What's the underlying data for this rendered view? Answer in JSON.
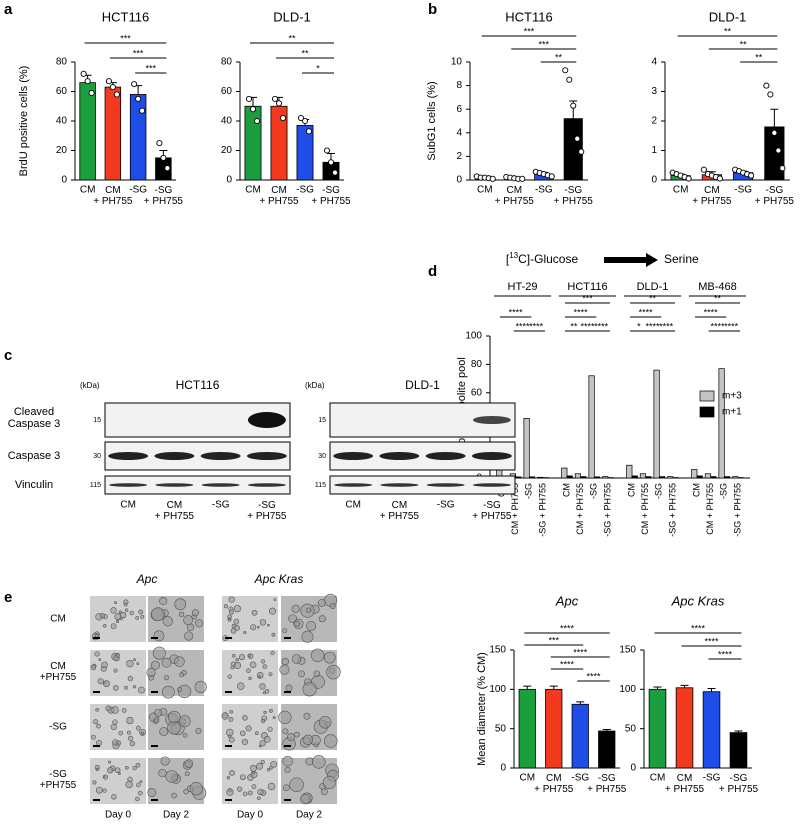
{
  "panels": [
    "a",
    "b",
    "c",
    "d",
    "e"
  ],
  "chart_data": [
    {
      "type": "bar",
      "title": "HCT116",
      "ylabel": "BrdU positive cells (%)",
      "categories": [
        "CM",
        "CM\n+ PH755",
        "-SG",
        "-SG\n+ PH755"
      ],
      "values": [
        66,
        63,
        58,
        15
      ],
      "errors": [
        5,
        3,
        6,
        5
      ],
      "points": [
        [
          72,
          67,
          59
        ],
        [
          67,
          63,
          58
        ],
        [
          65,
          55,
          47
        ],
        [
          25,
          15,
          8
        ]
      ],
      "colors": [
        "#1b9e3e",
        "#f23a1f",
        "#1f4de8",
        "#000000"
      ],
      "ylim": [
        0,
        80
      ],
      "yticks": [
        0,
        20,
        40,
        60,
        80
      ],
      "significance": [
        {
          "label": "***",
          "between": [
            0,
            3
          ]
        },
        {
          "label": "***",
          "between": [
            1,
            3
          ]
        },
        {
          "label": "***",
          "between": [
            2,
            3
          ]
        }
      ]
    },
    {
      "type": "bar",
      "title": "DLD-1",
      "categories": [
        "CM",
        "CM\n+ PH755",
        "-SG",
        "-SG\n+ PH755"
      ],
      "values": [
        50,
        50,
        37,
        12
      ],
      "errors": [
        6,
        6,
        4,
        6
      ],
      "points": [
        [
          55,
          48,
          40
        ],
        [
          55,
          52,
          42
        ],
        [
          42,
          40,
          33
        ],
        [
          20,
          12,
          5
        ]
      ],
      "colors": [
        "#1b9e3e",
        "#f23a1f",
        "#1f4de8",
        "#000000"
      ],
      "ylim": [
        0,
        80
      ],
      "yticks": [
        0,
        20,
        40,
        60,
        80
      ],
      "significance": [
        {
          "label": "**",
          "between": [
            0,
            3
          ]
        },
        {
          "label": "**",
          "between": [
            1,
            3
          ]
        },
        {
          "label": "*",
          "between": [
            2,
            3
          ]
        }
      ]
    },
    {
      "type": "bar",
      "title": "HCT116",
      "ylabel": "SubG1 cells (%)",
      "categories": [
        "CM",
        "CM\n+ PH755",
        "-SG",
        "-SG\n+ PH755"
      ],
      "values": [
        0.2,
        0.15,
        0.5,
        5.2
      ],
      "errors": [
        0.05,
        0.05,
        0.15,
        1.5
      ],
      "points": [
        [
          0.3,
          0.2,
          0.2,
          0.15,
          0.1
        ],
        [
          0.25,
          0.2,
          0.15,
          0.1,
          0.1
        ],
        [
          0.7,
          0.6,
          0.5,
          0.4,
          0.3
        ],
        [
          9.3,
          8.5,
          6.3,
          3.5,
          2.4
        ]
      ],
      "colors": [
        "#1b9e3e",
        "#f23a1f",
        "#1f4de8",
        "#000000"
      ],
      "ylim": [
        0,
        10
      ],
      "yticks": [
        0,
        2,
        4,
        6,
        8,
        10
      ],
      "significance": [
        {
          "label": "***",
          "between": [
            0,
            3
          ]
        },
        {
          "label": "***",
          "between": [
            1,
            3
          ]
        },
        {
          "label": "**",
          "between": [
            2,
            3
          ]
        }
      ]
    },
    {
      "type": "bar",
      "title": "DLD-1",
      "categories": [
        "CM",
        "CM\n+ PH755",
        "-SG",
        "-SG\n+ PH755"
      ],
      "values": [
        0.15,
        0.18,
        0.25,
        1.8
      ],
      "errors": [
        0.05,
        0.1,
        0.05,
        0.6
      ],
      "points": [
        [
          0.25,
          0.2,
          0.15,
          0.1,
          0.05
        ],
        [
          0.35,
          0.2,
          0.15,
          0.1,
          0.05
        ],
        [
          0.35,
          0.3,
          0.25,
          0.2,
          0.15
        ],
        [
          3.2,
          2.9,
          1.6,
          1.0,
          0.4
        ]
      ],
      "colors": [
        "#1b9e3e",
        "#f23a1f",
        "#1f4de8",
        "#000000"
      ],
      "ylim": [
        0,
        4
      ],
      "yticks": [
        0,
        1,
        2,
        3,
        4
      ],
      "significance": [
        {
          "label": "**",
          "between": [
            0,
            3
          ]
        },
        {
          "label": "**",
          "between": [
            1,
            3
          ]
        },
        {
          "label": "**",
          "between": [
            2,
            3
          ]
        }
      ]
    },
    {
      "type": "grouped_bar",
      "title": {
        "pre": "[",
        "sup": "13",
        "post": "C]-Glucose"
      },
      "target": "Serine",
      "ylabel": "% of metabolite pool",
      "groups": [
        "HT-29",
        "HCT116",
        "DLD-1",
        "MB-468"
      ],
      "categories": [
        "CM",
        "CM + PH755",
        "-SG",
        "-SG + PH755",
        "CM",
        "CM + PH755",
        "-SG",
        "-SG + PH755",
        "CM",
        "CM + PH755",
        "-SG",
        "-SG + PH755",
        "CM",
        "CM + PH755",
        "-SG",
        "-SG + PH755"
      ],
      "series": [
        {
          "name": "m+3",
          "color": "#c4c4c4",
          "values": [
            6,
            3,
            42,
            0.5,
            7,
            3,
            72,
            1,
            9,
            3,
            76,
            1,
            6,
            3,
            77,
            1
          ]
        },
        {
          "name": "m+1",
          "color": "#000000",
          "values": [
            1.5,
            0.8,
            0.8,
            0.3,
            1.5,
            1,
            0.8,
            0.3,
            1.5,
            1,
            1,
            0.3,
            1.5,
            1,
            1,
            0.3
          ]
        }
      ],
      "ylim": [
        0,
        100
      ],
      "yticks": [
        0,
        20,
        40,
        60,
        80,
        100
      ],
      "legend": "right",
      "significance": [
        [
          {
            "label": "****",
            "between": [
              0,
              2
            ]
          },
          {
            "label": "****",
            "between": [
              1,
              2
            ]
          },
          {
            "label": "****",
            "between": [
              2,
              3
            ]
          }
        ],
        [
          {
            "label": "***",
            "between": [
              0,
              3
            ]
          },
          {
            "label": "****",
            "between": [
              0,
              2
            ]
          },
          {
            "label": "**",
            "between": [
              0,
              1
            ]
          },
          {
            "label": "****",
            "between": [
              1,
              2
            ]
          },
          {
            "label": "****",
            "between": [
              2,
              3
            ]
          }
        ],
        [
          {
            "label": "**",
            "between": [
              0,
              3
            ]
          },
          {
            "label": "****",
            "between": [
              0,
              2
            ]
          },
          {
            "label": "*",
            "between": [
              0,
              1
            ]
          },
          {
            "label": "****",
            "between": [
              1,
              2
            ]
          },
          {
            "label": "****",
            "between": [
              2,
              3
            ]
          }
        ],
        [
          {
            "label": "**",
            "between": [
              0,
              3
            ]
          },
          {
            "label": "****",
            "between": [
              0,
              2
            ]
          },
          {
            "label": "****",
            "between": [
              1,
              2
            ]
          },
          {
            "label": "****",
            "between": [
              2,
              3
            ]
          }
        ]
      ]
    },
    {
      "type": "bar",
      "title": "Apc",
      "ylabel": "Mean diameter (% CM)",
      "categories": [
        "CM",
        "CM\n+ PH755",
        "-SG",
        "-SG\n+ PH755"
      ],
      "values": [
        100,
        100,
        81,
        47
      ],
      "errors": [
        4,
        4,
        3,
        2
      ],
      "colors": [
        "#1b9e3e",
        "#f23a1f",
        "#1f4de8",
        "#000000"
      ],
      "ylim": [
        0,
        150
      ],
      "yticks": [
        0,
        50,
        100,
        150
      ],
      "significance": [
        {
          "label": "****",
          "between": [
            0,
            3
          ]
        },
        {
          "label": "***",
          "between": [
            0,
            2
          ]
        },
        {
          "label": "****",
          "between": [
            1,
            3
          ]
        },
        {
          "label": "****",
          "between": [
            1,
            2
          ]
        },
        {
          "label": "****",
          "between": [
            2,
            3
          ]
        }
      ]
    },
    {
      "type": "bar",
      "title": "Apc Kras",
      "categories": [
        "CM",
        "CM\n+ PH755",
        "-SG",
        "-SG\n+ PH755"
      ],
      "values": [
        100,
        102,
        97,
        45
      ],
      "errors": [
        3,
        3,
        4,
        2
      ],
      "colors": [
        "#1b9e3e",
        "#f23a1f",
        "#1f4de8",
        "#000000"
      ],
      "ylim": [
        0,
        150
      ],
      "yticks": [
        0,
        50,
        100,
        150
      ],
      "significance": [
        {
          "label": "****",
          "between": [
            0,
            3
          ]
        },
        {
          "label": "****",
          "between": [
            1,
            3
          ]
        },
        {
          "label": "****",
          "between": [
            2,
            3
          ]
        }
      ]
    }
  ],
  "blot": {
    "kda_label": "(kDa)",
    "cell_lines": [
      "HCT116",
      "DLD-1"
    ],
    "rows": [
      {
        "label": "Cleaved\nCaspase 3",
        "kda": 15
      },
      {
        "label": "Caspase 3",
        "kda": 30
      },
      {
        "label": "Vinculin",
        "kda": 115
      }
    ],
    "lanes": [
      "CM",
      "CM\n+ PH755",
      "-SG",
      "-SG\n+ PH755"
    ]
  },
  "organoids": {
    "genotypes": [
      "Apc",
      "Apc Kras"
    ],
    "conditions": [
      "CM",
      "CM\n+PH755",
      "-SG",
      "-SG\n+PH755"
    ],
    "days": [
      "Day 0",
      "Day 2"
    ]
  }
}
